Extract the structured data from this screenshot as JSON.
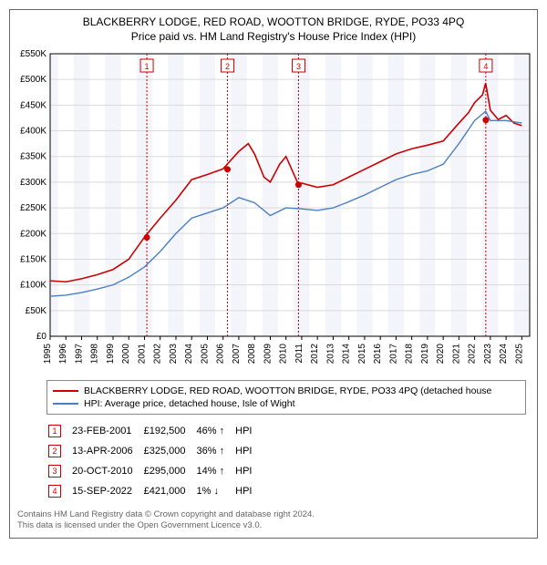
{
  "title_line1": "BLACKBERRY LODGE, RED ROAD, WOOTTON BRIDGE, RYDE, PO33 4PQ",
  "title_line2": "Price paid vs. HM Land Registry's House Price Index (HPI)",
  "chart": {
    "type": "line",
    "background_color": "#ffffff",
    "plot_background_shade": "#f4f4fb",
    "grid_color": "#d9d9d9",
    "border_color": "#666666",
    "x_years": [
      1995,
      1996,
      1997,
      1998,
      1999,
      2000,
      2001,
      2002,
      2003,
      2004,
      2005,
      2006,
      2007,
      2008,
      2009,
      2010,
      2011,
      2012,
      2013,
      2014,
      2015,
      2016,
      2017,
      2018,
      2019,
      2020,
      2021,
      2022,
      2023,
      2024,
      2025
    ],
    "ylim": [
      0,
      550000
    ],
    "ytick_step": 50000,
    "ytick_labels": [
      "£0",
      "£50K",
      "£100K",
      "£150K",
      "£200K",
      "£250K",
      "£300K",
      "£350K",
      "£400K",
      "£450K",
      "£500K",
      "£550K"
    ],
    "series": [
      {
        "name": "property",
        "label": "BLACKBERRY LODGE, RED ROAD, WOOTTON BRIDGE, RYDE, PO33 4PQ (detached house",
        "color": "#cc0000",
        "line_width": 1.6,
        "data": [
          [
            1995,
            108000
          ],
          [
            1996,
            106000
          ],
          [
            1997,
            112000
          ],
          [
            1998,
            120000
          ],
          [
            1999,
            130000
          ],
          [
            2000,
            150000
          ],
          [
            2001,
            193000
          ],
          [
            2002,
            230000
          ],
          [
            2003,
            265000
          ],
          [
            2004,
            305000
          ],
          [
            2005,
            315000
          ],
          [
            2006,
            326000
          ],
          [
            2007,
            360000
          ],
          [
            2007.6,
            375000
          ],
          [
            2008,
            355000
          ],
          [
            2008.6,
            310000
          ],
          [
            2009,
            300000
          ],
          [
            2009.6,
            335000
          ],
          [
            2010,
            350000
          ],
          [
            2010.8,
            295000
          ],
          [
            2011,
            298000
          ],
          [
            2012,
            290000
          ],
          [
            2013,
            295000
          ],
          [
            2014,
            310000
          ],
          [
            2015,
            325000
          ],
          [
            2016,
            340000
          ],
          [
            2017,
            355000
          ],
          [
            2018,
            365000
          ],
          [
            2019,
            372000
          ],
          [
            2020,
            380000
          ],
          [
            2021,
            415000
          ],
          [
            2021.6,
            435000
          ],
          [
            2022,
            455000
          ],
          [
            2022.5,
            470000
          ],
          [
            2022.7,
            493000
          ],
          [
            2023,
            440000
          ],
          [
            2023.5,
            422000
          ],
          [
            2024,
            430000
          ],
          [
            2024.5,
            415000
          ],
          [
            2025,
            410000
          ]
        ]
      },
      {
        "name": "hpi",
        "label": "HPI: Average price, detached house, Isle of Wight",
        "color": "#4a7fc4",
        "line_width": 1.4,
        "data": [
          [
            1995,
            78000
          ],
          [
            1996,
            80000
          ],
          [
            1997,
            85000
          ],
          [
            1998,
            92000
          ],
          [
            1999,
            100000
          ],
          [
            2000,
            115000
          ],
          [
            2001,
            135000
          ],
          [
            2002,
            165000
          ],
          [
            2003,
            200000
          ],
          [
            2004,
            230000
          ],
          [
            2005,
            240000
          ],
          [
            2006,
            250000
          ],
          [
            2007,
            270000
          ],
          [
            2008,
            260000
          ],
          [
            2009,
            235000
          ],
          [
            2010,
            250000
          ],
          [
            2011,
            248000
          ],
          [
            2012,
            245000
          ],
          [
            2013,
            250000
          ],
          [
            2014,
            262000
          ],
          [
            2015,
            275000
          ],
          [
            2016,
            290000
          ],
          [
            2017,
            305000
          ],
          [
            2018,
            315000
          ],
          [
            2019,
            322000
          ],
          [
            2020,
            335000
          ],
          [
            2021,
            375000
          ],
          [
            2022,
            420000
          ],
          [
            2022.7,
            438000
          ],
          [
            2023,
            420000
          ],
          [
            2024,
            420000
          ],
          [
            2025,
            415000
          ]
        ]
      }
    ],
    "sale_markers": [
      {
        "n": "1",
        "color": "#cc0000",
        "x": 2001.15,
        "y": 192500
      },
      {
        "n": "2",
        "color": "#cc0000",
        "x": 2006.28,
        "y": 325000
      },
      {
        "n": "3",
        "color": "#cc0000",
        "x": 2010.8,
        "y": 295000
      },
      {
        "n": "4",
        "color": "#cc0000",
        "x": 2022.71,
        "y": 421000
      }
    ],
    "shaded_bands": [
      {
        "start": 1995,
        "end": 1995.5
      },
      {
        "start": 1996.5,
        "end": 1997.5
      },
      {
        "start": 1998.5,
        "end": 1999.5
      },
      {
        "start": 2000.5,
        "end": 2001.5
      },
      {
        "start": 2002.5,
        "end": 2003.5
      },
      {
        "start": 2004.5,
        "end": 2005.5
      },
      {
        "start": 2006.5,
        "end": 2007.5
      },
      {
        "start": 2008.5,
        "end": 2009.5
      },
      {
        "start": 2010.5,
        "end": 2011.5
      },
      {
        "start": 2012.5,
        "end": 2013.5
      },
      {
        "start": 2014.5,
        "end": 2015.5
      },
      {
        "start": 2016.5,
        "end": 2017.5
      },
      {
        "start": 2018.5,
        "end": 2019.5
      },
      {
        "start": 2020.5,
        "end": 2021.5
      },
      {
        "start": 2022.5,
        "end": 2023.5
      },
      {
        "start": 2024.5,
        "end": 2025.5
      }
    ]
  },
  "legend": {
    "items": [
      {
        "color": "#cc0000",
        "label": "BLACKBERRY LODGE, RED ROAD, WOOTTON BRIDGE, RYDE, PO33 4PQ (detached house"
      },
      {
        "color": "#4a7fc4",
        "label": "HPI: Average price, detached house, Isle of Wight"
      }
    ]
  },
  "markers_table": {
    "hpi_label": "HPI",
    "rows": [
      {
        "n": "1",
        "color": "#cc0000",
        "date": "23-FEB-2001",
        "price": "£192,500",
        "pct": "46% ↑"
      },
      {
        "n": "2",
        "color": "#cc0000",
        "date": "13-APR-2006",
        "price": "£325,000",
        "pct": "36% ↑"
      },
      {
        "n": "3",
        "color": "#cc0000",
        "date": "20-OCT-2010",
        "price": "£295,000",
        "pct": "14% ↑"
      },
      {
        "n": "4",
        "color": "#cc0000",
        "date": "15-SEP-2022",
        "price": "£421,000",
        "pct": "1% ↓"
      }
    ]
  },
  "footer": {
    "line1": "Contains HM Land Registry data © Crown copyright and database right 2024.",
    "line2": "This data is licensed under the Open Government Licence v3.0."
  }
}
